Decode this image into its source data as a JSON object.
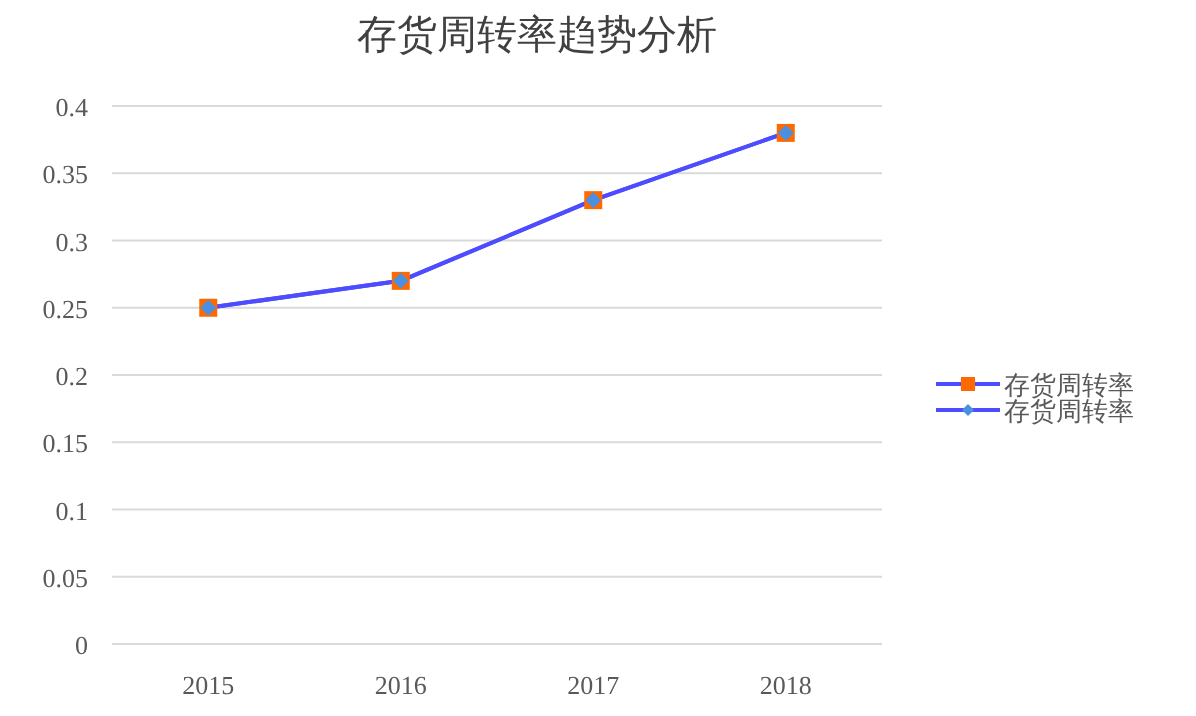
{
  "chart_data": {
    "type": "line",
    "title": "存货周转率趋势分析",
    "categories": [
      "2015",
      "2016",
      "2017",
      "2018"
    ],
    "series": [
      {
        "name": "存货周转率",
        "color": "#4d4dff",
        "colors": [
          "#ff6a00",
          "#ff6a00",
          "#ff6a00",
          "#ff6a00"
        ],
        "marker": "square",
        "values": [
          0.25,
          0.27,
          0.33,
          0.38
        ]
      },
      {
        "name": "存货周转率",
        "color": "#4d4dff",
        "colors": [
          "#4a8fe0",
          "#4a8fe0",
          "#4a8fe0",
          "#4a8fe0"
        ],
        "marker": "diamond",
        "values": [
          0.25,
          0.27,
          0.33,
          0.38
        ]
      }
    ],
    "ylim": [
      0,
      0.4
    ],
    "yticks": [
      0,
      0.05,
      0.1,
      0.15,
      0.2,
      0.25,
      0.3,
      0.35,
      0.4
    ],
    "grid": "y",
    "legend": "right"
  }
}
